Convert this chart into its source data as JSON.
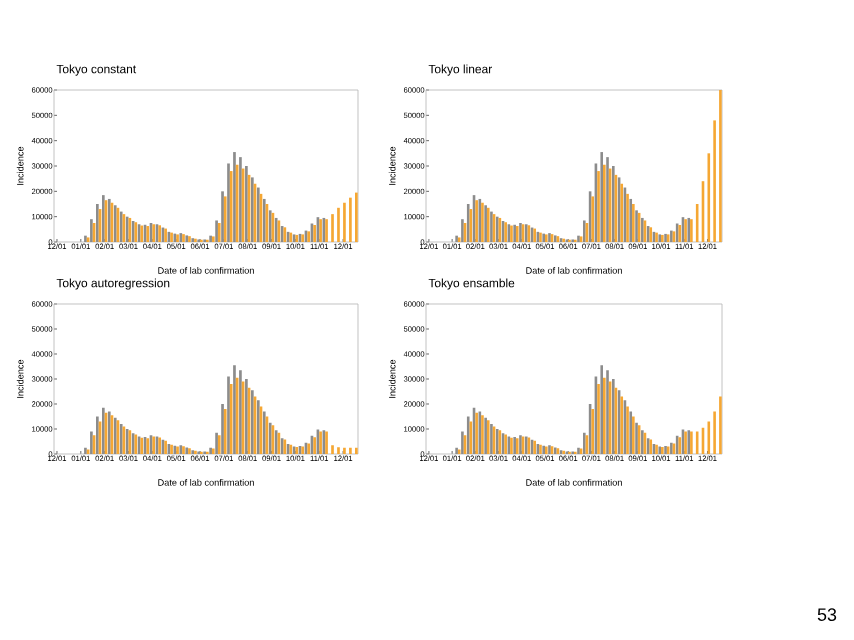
{
  "chart_data": [
    {
      "type": "bar",
      "title": "Tokyo constant",
      "xlabel": "Date of lab confirmation",
      "ylabel": "Incidence",
      "categories": [
        "12/01",
        null,
        null,
        null,
        "01/01",
        null,
        null,
        null,
        "02/01",
        null,
        null,
        null,
        "03/01",
        null,
        null,
        null,
        "04/01",
        null,
        null,
        null,
        "05/01",
        null,
        null,
        null,
        "06/01",
        null,
        null,
        null,
        "07/01",
        null,
        null,
        null,
        "08/01",
        null,
        null,
        null,
        "09/01",
        null,
        null,
        null,
        "10/01",
        null,
        null,
        null,
        "11/01",
        null,
        null,
        null,
        "12/01",
        null,
        null
      ],
      "ylim": [
        0,
        60000
      ],
      "yticks": [
        0,
        10000,
        20000,
        30000,
        40000,
        50000,
        60000
      ],
      "series": [
        {
          "color": "#8c8c8c",
          "values": [
            0,
            0,
            0,
            0,
            0,
            2500,
            9000,
            15000,
            18500,
            17000,
            14500,
            12000,
            10000,
            8300,
            7000,
            6800,
            7500,
            7000,
            5700,
            4000,
            3300,
            3500,
            2600,
            1500,
            1000,
            1000,
            2500,
            8500,
            20000,
            31000,
            35500,
            33500,
            30000,
            25500,
            21500,
            17000,
            12500,
            9500,
            6300,
            4000,
            3000,
            3200,
            4500,
            7300,
            9800,
            9500,
            null,
            null,
            null,
            null,
            null
          ]
        },
        {
          "color": "#f5a733",
          "values": [
            0,
            0,
            0,
            0,
            0,
            1800,
            7500,
            13000,
            16500,
            15500,
            13500,
            11000,
            9500,
            7800,
            6500,
            6300,
            7000,
            6600,
            5300,
            3700,
            3000,
            3100,
            2300,
            1300,
            900,
            900,
            2200,
            7500,
            18000,
            28000,
            30500,
            29000,
            26500,
            23000,
            19000,
            15000,
            11500,
            8500,
            5800,
            3700,
            2800,
            3000,
            4200,
            6700,
            9000,
            9000,
            11000,
            13500,
            15500,
            17500,
            19500
          ]
        }
      ]
    },
    {
      "type": "bar",
      "title": "Tokyo linear",
      "xlabel": "Date of lab confirmation",
      "ylabel": "Incidence",
      "categories": [
        "12/01",
        null,
        null,
        null,
        "01/01",
        null,
        null,
        null,
        "02/01",
        null,
        null,
        null,
        "03/01",
        null,
        null,
        null,
        "04/01",
        null,
        null,
        null,
        "05/01",
        null,
        null,
        null,
        "06/01",
        null,
        null,
        null,
        "07/01",
        null,
        null,
        null,
        "08/01",
        null,
        null,
        null,
        "09/01",
        null,
        null,
        null,
        "10/01",
        null,
        null,
        null,
        "11/01",
        null,
        null,
        null,
        "12/01",
        null,
        null
      ],
      "ylim": [
        0,
        60000
      ],
      "yticks": [
        0,
        10000,
        20000,
        30000,
        40000,
        50000,
        60000
      ],
      "series": [
        {
          "color": "#8c8c8c",
          "values": [
            0,
            0,
            0,
            0,
            0,
            2500,
            9000,
            15000,
            18500,
            17000,
            14500,
            12000,
            10000,
            8300,
            7000,
            6800,
            7500,
            7000,
            5700,
            4000,
            3300,
            3500,
            2600,
            1500,
            1000,
            1000,
            2500,
            8500,
            20000,
            31000,
            35500,
            33500,
            30000,
            25500,
            21500,
            17000,
            12500,
            9500,
            6300,
            4000,
            3000,
            3200,
            4500,
            7300,
            9800,
            9500,
            null,
            null,
            null,
            null,
            null
          ]
        },
        {
          "color": "#f5a733",
          "values": [
            0,
            0,
            0,
            0,
            0,
            1800,
            7500,
            13000,
            16500,
            15500,
            13500,
            11000,
            9500,
            7800,
            6500,
            6300,
            7000,
            6600,
            5300,
            3700,
            3000,
            3100,
            2300,
            1300,
            900,
            900,
            2200,
            7500,
            18000,
            28000,
            30500,
            29000,
            26500,
            23000,
            19000,
            15000,
            11500,
            8500,
            5800,
            3700,
            2800,
            3000,
            4200,
            6700,
            9000,
            9000,
            15000,
            24000,
            35000,
            48000,
            60000
          ]
        }
      ]
    },
    {
      "type": "bar",
      "title": "Tokyo autoregression",
      "xlabel": "Date of lab confirmation",
      "ylabel": "Incidence",
      "categories": [
        "12/01",
        null,
        null,
        null,
        "01/01",
        null,
        null,
        null,
        "02/01",
        null,
        null,
        null,
        "03/01",
        null,
        null,
        null,
        "04/01",
        null,
        null,
        null,
        "05/01",
        null,
        null,
        null,
        "06/01",
        null,
        null,
        null,
        "07/01",
        null,
        null,
        null,
        "08/01",
        null,
        null,
        null,
        "09/01",
        null,
        null,
        null,
        "10/01",
        null,
        null,
        null,
        "11/01",
        null,
        null,
        null,
        "12/01",
        null,
        null
      ],
      "ylim": [
        0,
        60000
      ],
      "yticks": [
        0,
        10000,
        20000,
        30000,
        40000,
        50000,
        60000
      ],
      "series": [
        {
          "color": "#8c8c8c",
          "values": [
            0,
            0,
            0,
            0,
            0,
            2500,
            9000,
            15000,
            18500,
            17000,
            14500,
            12000,
            10000,
            8300,
            7000,
            6800,
            7500,
            7000,
            5700,
            4000,
            3300,
            3500,
            2600,
            1500,
            1000,
            1000,
            2500,
            8500,
            20000,
            31000,
            35500,
            33500,
            30000,
            25500,
            21500,
            17000,
            12500,
            9500,
            6300,
            4000,
            3000,
            3200,
            4500,
            7300,
            9800,
            9500,
            null,
            null,
            null,
            null,
            null
          ]
        },
        {
          "color": "#f5a733",
          "values": [
            0,
            0,
            0,
            0,
            0,
            1800,
            7500,
            13000,
            16500,
            15500,
            13500,
            11000,
            9500,
            7800,
            6500,
            6300,
            7000,
            6600,
            5300,
            3700,
            3000,
            3100,
            2300,
            1300,
            900,
            900,
            2200,
            7500,
            18000,
            28000,
            30500,
            29000,
            26500,
            23000,
            19000,
            15000,
            11500,
            8500,
            5800,
            3700,
            2800,
            3000,
            4200,
            6700,
            9000,
            9000,
            3500,
            2700,
            2500,
            2500,
            2500
          ]
        }
      ]
    },
    {
      "type": "bar",
      "title": "Tokyo ensamble",
      "xlabel": "Date of lab confirmation",
      "ylabel": "Incidence",
      "categories": [
        "12/01",
        null,
        null,
        null,
        "01/01",
        null,
        null,
        null,
        "02/01",
        null,
        null,
        null,
        "03/01",
        null,
        null,
        null,
        "04/01",
        null,
        null,
        null,
        "05/01",
        null,
        null,
        null,
        "06/01",
        null,
        null,
        null,
        "07/01",
        null,
        null,
        null,
        "08/01",
        null,
        null,
        null,
        "09/01",
        null,
        null,
        null,
        "10/01",
        null,
        null,
        null,
        "11/01",
        null,
        null,
        null,
        "12/01",
        null,
        null
      ],
      "ylim": [
        0,
        60000
      ],
      "yticks": [
        0,
        10000,
        20000,
        30000,
        40000,
        50000,
        60000
      ],
      "annotations": [
        "53"
      ],
      "series": [
        {
          "color": "#8c8c8c",
          "values": [
            0,
            0,
            0,
            0,
            0,
            2500,
            9000,
            15000,
            18500,
            17000,
            14500,
            12000,
            10000,
            8300,
            7000,
            6800,
            7500,
            7000,
            5700,
            4000,
            3300,
            3500,
            2600,
            1500,
            1000,
            1000,
            2500,
            8500,
            20000,
            31000,
            35500,
            33500,
            30000,
            25500,
            21500,
            17000,
            12500,
            9500,
            6300,
            4000,
            3000,
            3200,
            4500,
            7300,
            9800,
            9500,
            null,
            null,
            null,
            null,
            null
          ]
        },
        {
          "color": "#f5a733",
          "values": [
            0,
            0,
            0,
            0,
            0,
            1800,
            7500,
            13000,
            16500,
            15500,
            13500,
            11000,
            9500,
            7800,
            6500,
            6300,
            7000,
            6600,
            5300,
            3700,
            3000,
            3100,
            2300,
            1300,
            900,
            900,
            2200,
            7500,
            18000,
            28000,
            30500,
            29000,
            26500,
            23000,
            19000,
            15000,
            11500,
            8500,
            5800,
            3700,
            2800,
            3000,
            4200,
            6700,
            9000,
            9000,
            9000,
            10500,
            13000,
            17000,
            23000
          ]
        }
      ]
    }
  ]
}
